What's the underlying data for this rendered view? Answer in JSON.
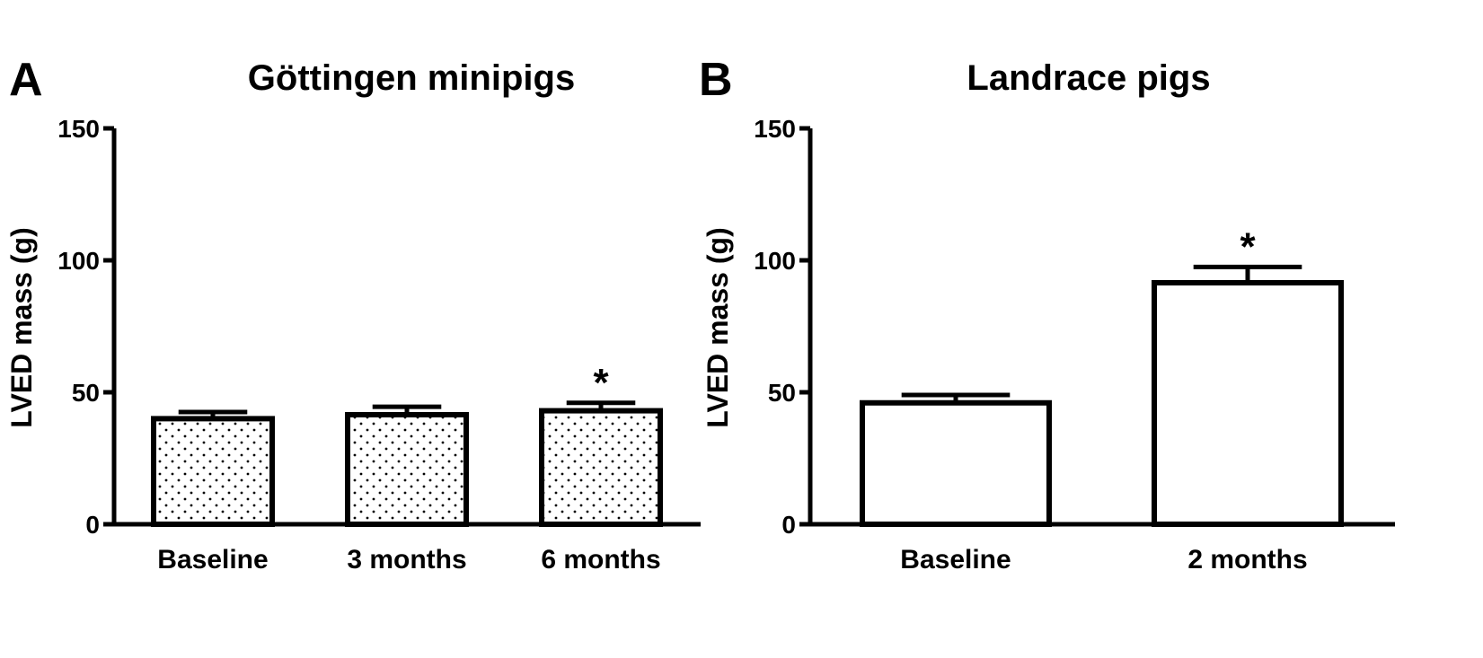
{
  "colors": {
    "ink": "#000000",
    "background": "#ffffff",
    "dot_pattern": "#000000"
  },
  "chart_data": [
    {
      "type": "bar",
      "panel": "A",
      "title": "Göttingen minipigs",
      "ylabel": "LVED mass (g)",
      "xlabel": "",
      "ylim": [
        0,
        150
      ],
      "yticks": [
        0,
        50,
        100,
        150
      ],
      "fill": "dotted",
      "categories": [
        "Baseline",
        "3 months",
        "6 months"
      ],
      "values": [
        40,
        41.5,
        43
      ],
      "errors": [
        2.5,
        3,
        3
      ],
      "annotations": [
        "",
        "",
        "*"
      ]
    },
    {
      "type": "bar",
      "panel": "B",
      "title": "Landrace pigs",
      "ylabel": "LVED mass (g)",
      "xlabel": "",
      "ylim": [
        0,
        150
      ],
      "yticks": [
        0,
        50,
        100,
        150
      ],
      "fill": "open",
      "categories": [
        "Baseline",
        "2 months"
      ],
      "values": [
        46,
        91.5
      ],
      "errors": [
        3,
        6
      ],
      "annotations": [
        "",
        "*"
      ]
    }
  ]
}
